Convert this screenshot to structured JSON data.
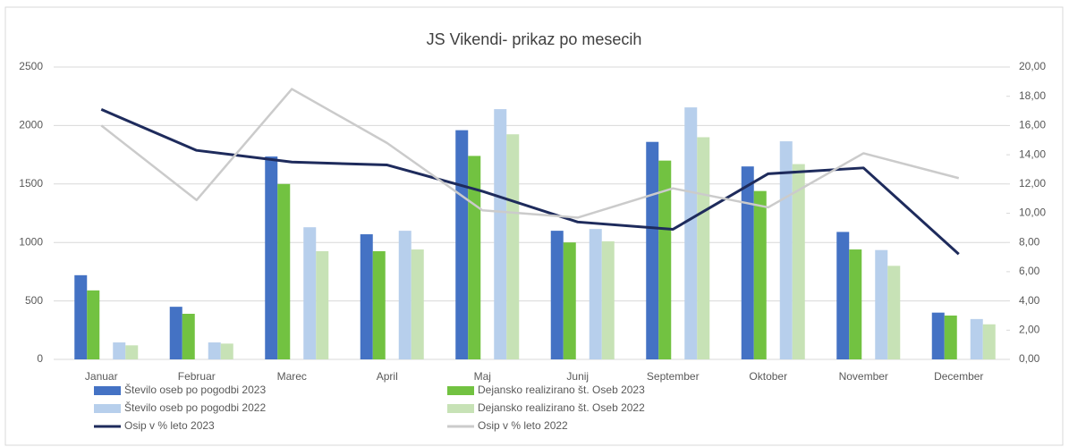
{
  "chart_data": {
    "type": "bar_line",
    "title": "JS Vikendi- prikaz po mesecih",
    "categories": [
      "Januar",
      "Februar",
      "Marec",
      "April",
      "Maj",
      "Junij",
      "September",
      "Oktober",
      "November",
      "December"
    ],
    "series": [
      {
        "name": "Število oseb po pogodbi 2023",
        "color": "#4472c4",
        "kind": "bar",
        "values": [
          720,
          450,
          1735,
          1070,
          1960,
          1100,
          1860,
          1650,
          1090,
          400
        ]
      },
      {
        "name": "Dejansko realizirano št. Oseb 2023",
        "color": "#72c241",
        "kind": "bar",
        "values": [
          590,
          390,
          1500,
          925,
          1740,
          1000,
          1700,
          1440,
          940,
          375
        ]
      },
      {
        "name": "Število oseb po pogodbi 2022",
        "color": "#b7cfec",
        "kind": "bar",
        "values": [
          145,
          145,
          1130,
          1100,
          2140,
          1115,
          2155,
          1865,
          935,
          345
        ]
      },
      {
        "name": "Dejansko realizirano št. Oseb 2022",
        "color": "#c7e2b6",
        "kind": "bar",
        "values": [
          120,
          135,
          925,
          940,
          1925,
          1010,
          1900,
          1670,
          800,
          300
        ]
      },
      {
        "name": "Osip v % leto 2023",
        "color": "#1e2b5c",
        "kind": "line",
        "axis": "y2",
        "values": [
          17.1,
          14.3,
          13.5,
          13.3,
          11.5,
          9.4,
          8.9,
          12.7,
          13.1,
          7.2
        ]
      },
      {
        "name": "Osip v % leto 2022",
        "color": "#cbcbcb",
        "kind": "line",
        "axis": "y2",
        "values": [
          16.0,
          10.9,
          18.5,
          14.8,
          10.2,
          9.7,
          11.7,
          10.4,
          14.1,
          12.4
        ]
      }
    ],
    "ylim": [
      0,
      2500
    ],
    "yticks": [
      0,
      500,
      1000,
      1500,
      2000,
      2500
    ],
    "y2lim": [
      0,
      20
    ],
    "y2ticks": [
      {
        "value": 0,
        "label": "0,00"
      },
      {
        "value": 2,
        "label": "2,00"
      },
      {
        "value": 4,
        "label": "4,00"
      },
      {
        "value": 6,
        "label": "6,00"
      },
      {
        "value": 8,
        "label": "8,00"
      },
      {
        "value": 10,
        "label": "10,00"
      },
      {
        "value": 12,
        "label": "12,00"
      },
      {
        "value": 14,
        "label": "14,00"
      },
      {
        "value": 16,
        "label": "16,00"
      },
      {
        "value": 18,
        "label": "18,00"
      },
      {
        "value": 20,
        "label": "20,00"
      }
    ],
    "grid": true
  }
}
